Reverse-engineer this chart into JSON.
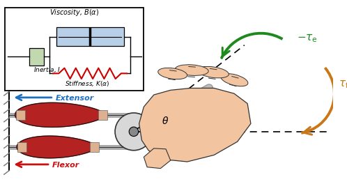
{
  "fig_width": 4.98,
  "fig_height": 2.74,
  "dpi": 100,
  "background": "#ffffff",
  "viscosity_label": "Viscosity, $B(\\alpha)$",
  "viscosity_box_color": "#b8cfe8",
  "stiffness_label": "Stiffness, $K(\\alpha)$",
  "stiffness_color": "#cc0000",
  "inertia_label": "Inertia, $I$",
  "inertia_box_color": "#c2d9b0",
  "extensor_label": "Extensor",
  "extensor_color": "#1e6fc0",
  "flexor_label": "Flexor",
  "flexor_color": "#cc1111",
  "tau_e_label": "$-\\tau_\\mathrm{e}$",
  "tau_e_color": "#1e8a1e",
  "tau_f_label": "$\\tau_\\mathrm{f}$",
  "tau_f_color": "#c87818",
  "theta_label": "$\\theta$",
  "muscle_fill": "#b52222",
  "muscle_edge": "#111111",
  "tendon_color": "#ddbba0",
  "wall_hatch": "#777777",
  "pulley_fill": "#d8d8d8",
  "pulley_edge": "#333333",
  "rod_color": "#aaaaaa",
  "skin_color": "#f2c4a0",
  "skin_edge": "#333333",
  "wrist_color": "#f2c4a0"
}
